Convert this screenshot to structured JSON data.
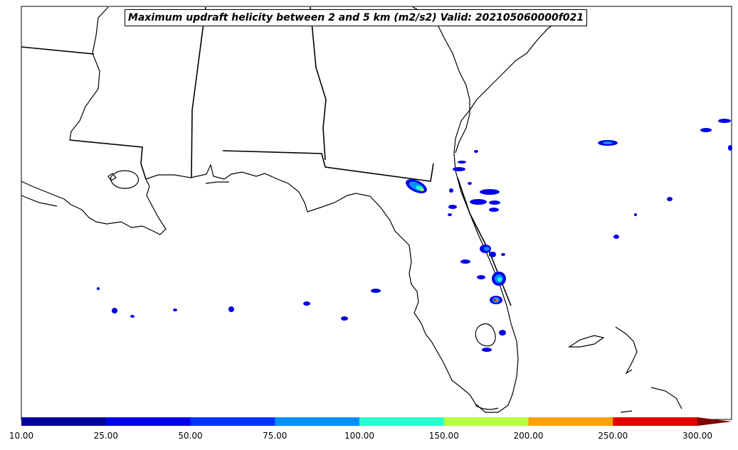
{
  "title": "Maximum updraft helicity between 2 and 5 km (m2/s2) Valid: 202105060000f021",
  "colorbar": {
    "ticks": [
      "10.00",
      "25.00",
      "50.00",
      "75.00",
      "100.00",
      "150.00",
      "200.00",
      "250.00",
      "300.00"
    ],
    "colors": [
      "#00009e",
      "#0000e8",
      "#0034ff",
      "#0090ff",
      "#26ffd0",
      "#b6ff40",
      "#ffa200",
      "#e40000"
    ],
    "extend_color": "#800000"
  },
  "chart_data": {
    "type": "map",
    "field": "max updraft helicity 2-5 km",
    "units": "m2/s2",
    "levels": [
      10,
      25,
      50,
      75,
      100,
      150,
      200,
      250,
      300
    ],
    "extend": "max",
    "valid": "202105060000f021"
  }
}
